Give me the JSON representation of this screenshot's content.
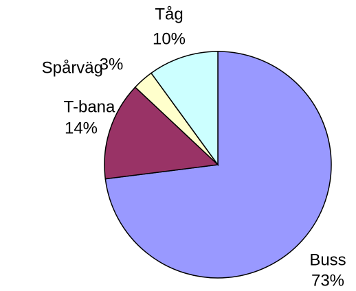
{
  "chart_data": {
    "type": "pie",
    "categories": [
      "Buss",
      "T-bana",
      "Spårväg",
      "Tåg"
    ],
    "values": [
      73,
      14,
      3,
      10
    ],
    "value_labels": [
      "73%",
      "14%",
      "3%",
      "10%"
    ],
    "colors": [
      "#9999ff",
      "#993366",
      "#ffffcc",
      "#ccffff"
    ]
  }
}
